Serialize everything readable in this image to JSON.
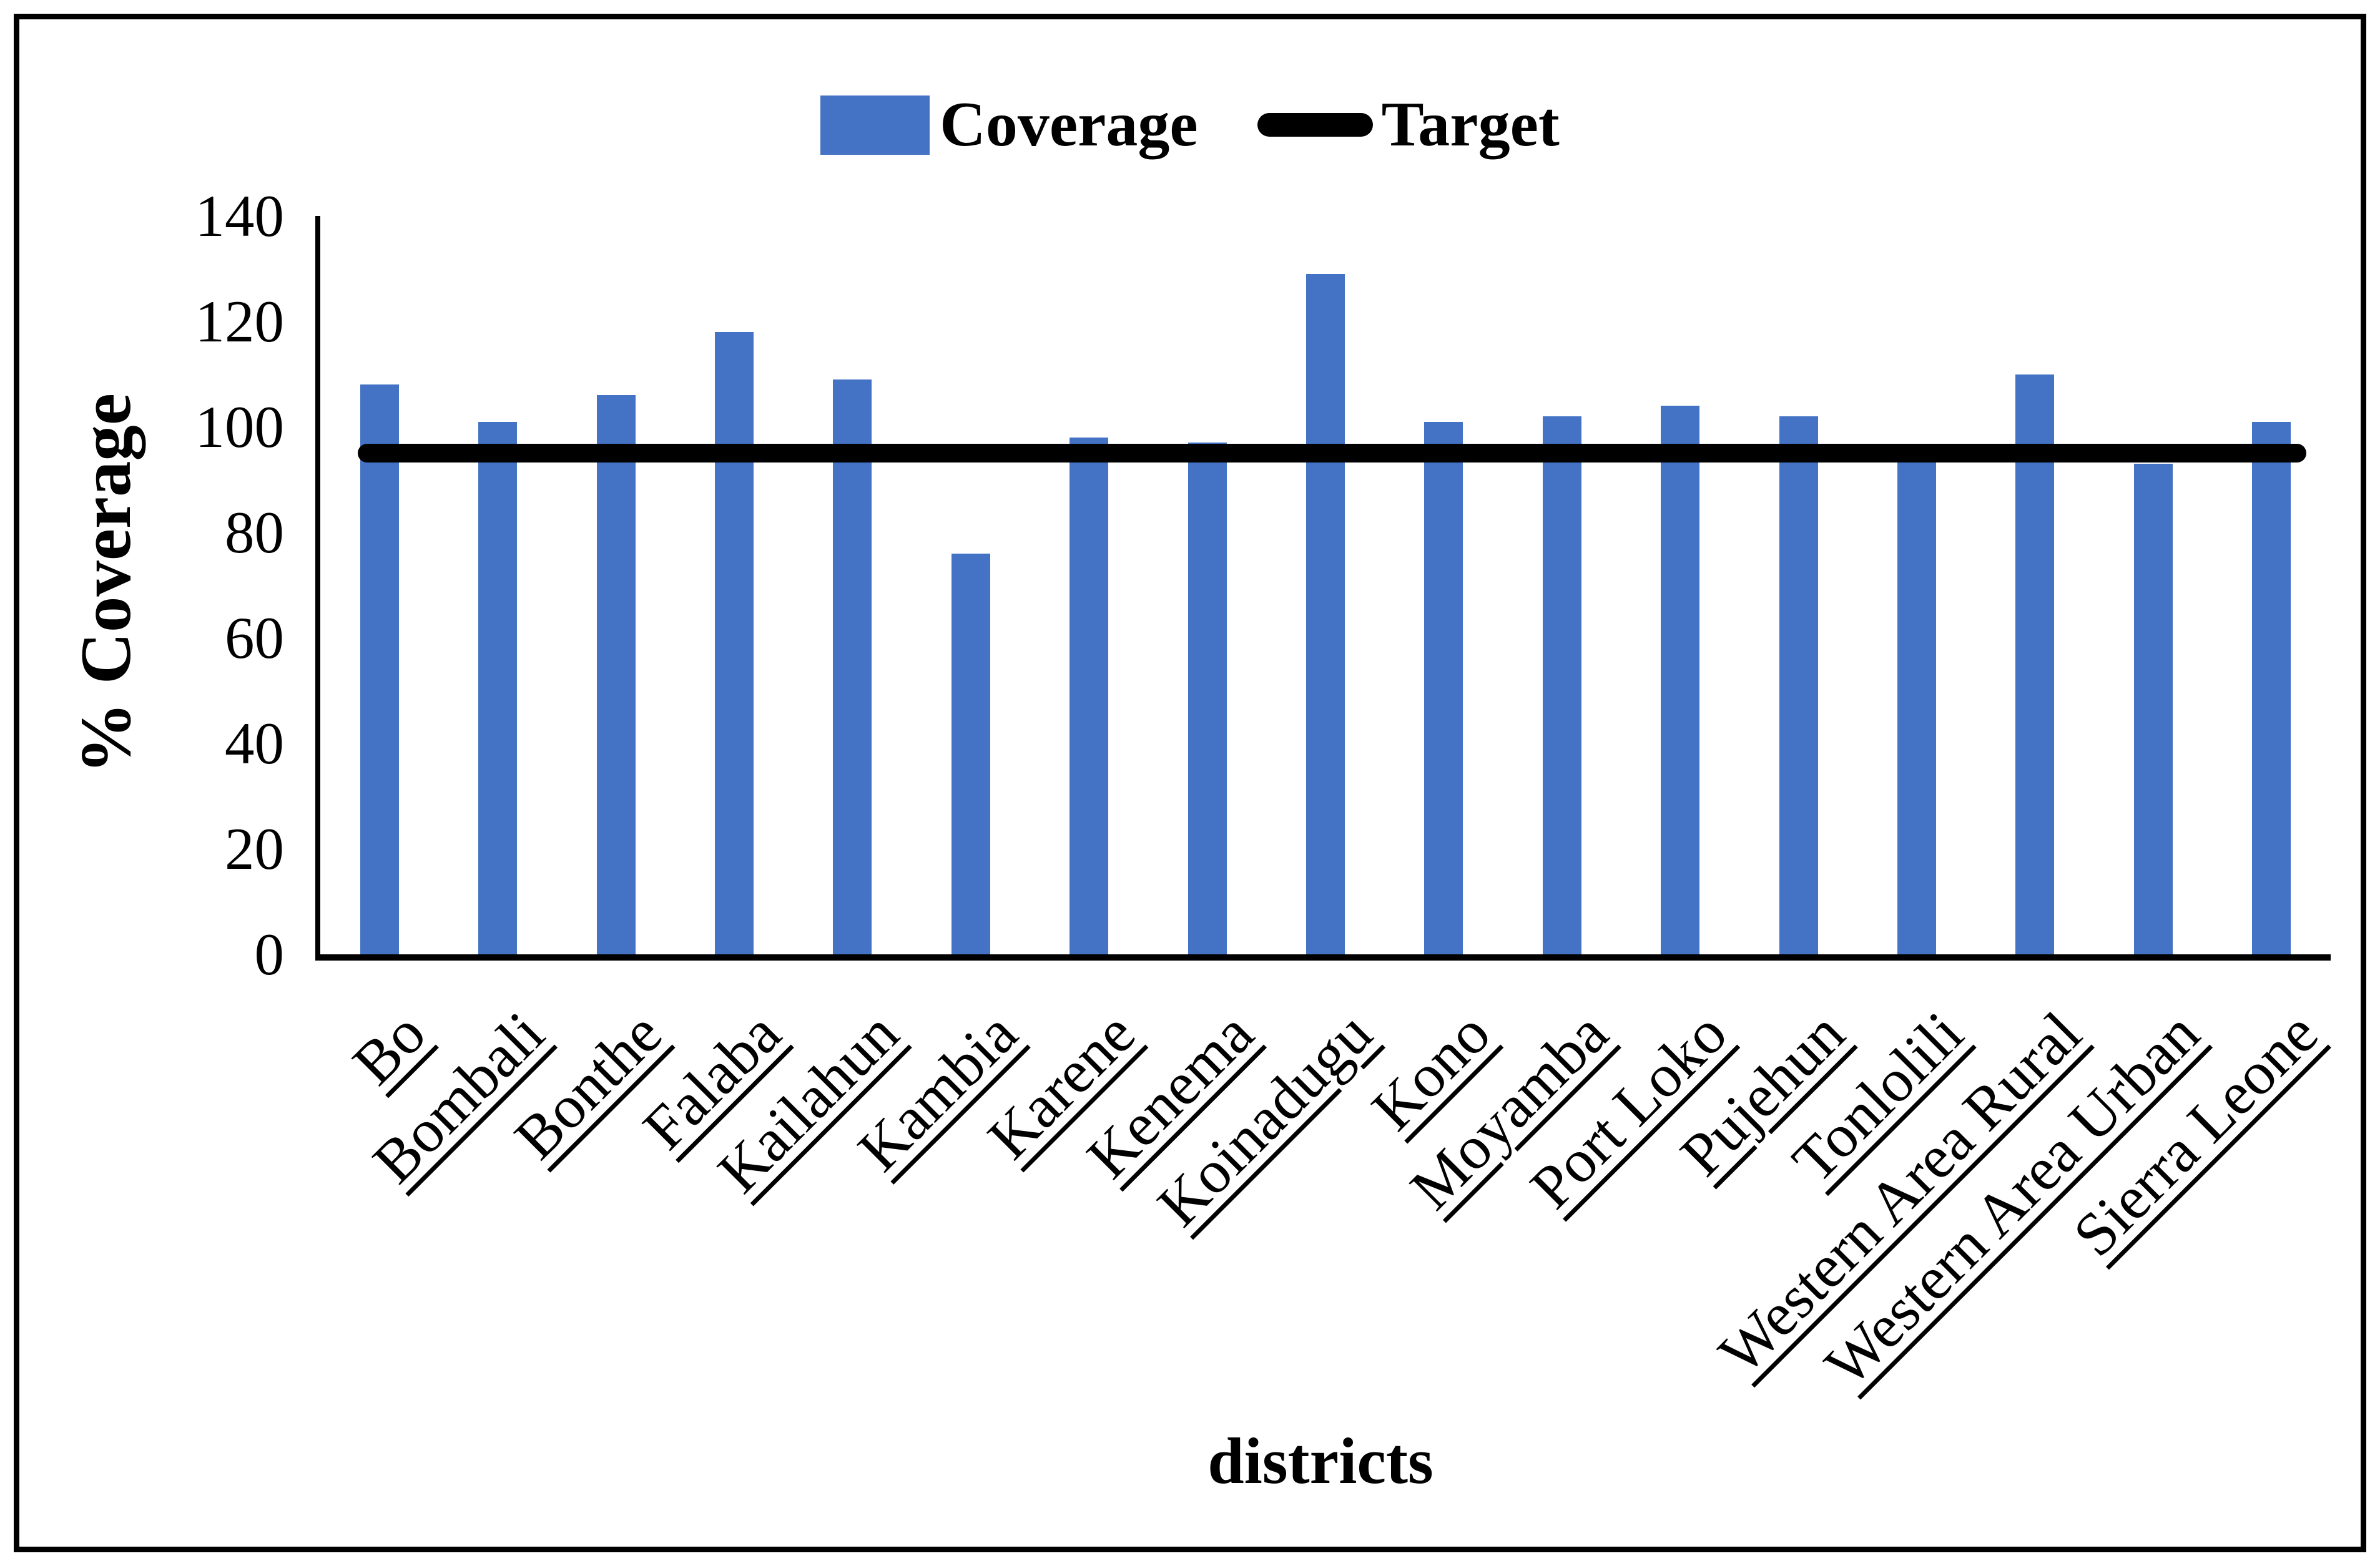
{
  "chart_data": {
    "type": "bar",
    "categories": [
      "Bo",
      "Bombali",
      "Bonthe",
      "Falaba",
      "Kailahun",
      "Kambia",
      "Karene",
      "Kenema",
      "Koinadugu",
      "Kono",
      "Moyamba",
      "Port Loko",
      "Pujehun",
      "Tonlolili",
      "Western Area Rural",
      "Western Area Urban",
      "Sierra Leone"
    ],
    "series": [
      {
        "name": "Coverage",
        "type": "bar",
        "color": "#4472C4",
        "values": [
          108,
          101,
          106,
          118,
          109,
          76,
          98,
          97,
          129,
          101,
          102,
          104,
          102,
          94,
          110,
          93,
          101
        ]
      },
      {
        "name": "Target",
        "type": "line",
        "color": "#000000",
        "value": 95
      }
    ],
    "xlabel": "districts",
    "ylabel": "% Coverage",
    "ylim": [
      0,
      140
    ],
    "yticks": [
      0,
      20,
      40,
      60,
      80,
      100,
      120,
      140
    ],
    "legend_position": "top",
    "grid": false,
    "category_label_rotation_deg": 45,
    "category_labels_underlined": true,
    "axis_color": "#000000",
    "background_color": "#ffffff",
    "frame_border_color": "#000000"
  }
}
